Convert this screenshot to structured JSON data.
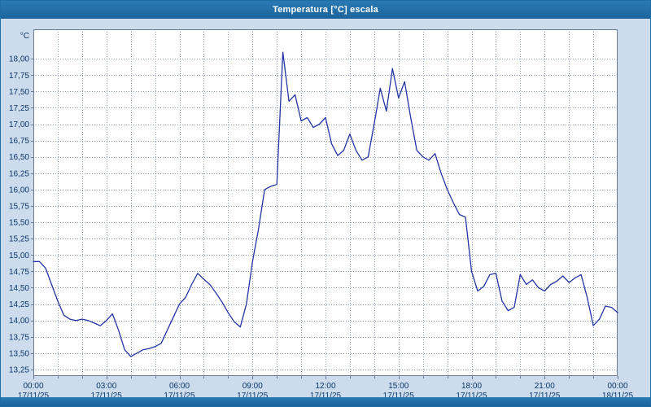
{
  "header": {
    "title": "Temperatura [°C] escala"
  },
  "colors": {
    "page_bg": "#ccdcec",
    "titlebar_bg": "#1c6ea4",
    "plot_bg": "#ffffff",
    "plot_border": "#6b7b8d",
    "grid": "#8da0b5",
    "axis_text": "#0b3568",
    "line": "#2334a4"
  },
  "chart_data": {
    "type": "line",
    "title": "Temperatura [°C] escala",
    "ylabel": "°C",
    "legend": "none",
    "grid": "dotted, hourly vertical, 0.25°C horizontal",
    "xlim": [
      0,
      24
    ],
    "ylim": [
      13.15,
      18.45
    ],
    "x_step_hours": 0.25,
    "x_interval_minutes": 15,
    "y_tick_min": 13.25,
    "y_tick_step": 0.25,
    "y_ticks": [
      "13,25",
      "13,50",
      "13,75",
      "14,00",
      "14,25",
      "14,50",
      "14,75",
      "15,00",
      "15,25",
      "15,50",
      "15,75",
      "16,00",
      "16,25",
      "16,50",
      "16,75",
      "17,00",
      "17,25",
      "17,50",
      "17,75",
      "18,00"
    ],
    "x_ticks": [
      {
        "hour": 0,
        "time": "00:00",
        "date": "17/11/25"
      },
      {
        "hour": 3,
        "time": "03:00",
        "date": "17/11/25"
      },
      {
        "hour": 6,
        "time": "06:00",
        "date": "17/11/25"
      },
      {
        "hour": 9,
        "time": "09:00",
        "date": "17/11/25"
      },
      {
        "hour": 12,
        "time": "12:00",
        "date": "17/11/25"
      },
      {
        "hour": 15,
        "time": "15:00",
        "date": "17/11/25"
      },
      {
        "hour": 18,
        "time": "18:00",
        "date": "17/11/25"
      },
      {
        "hour": 21,
        "time": "21:00",
        "date": "17/11/25"
      },
      {
        "hour": 24,
        "time": "00:00",
        "date": "18/11/25"
      }
    ],
    "values": [
      14.9,
      14.9,
      14.8,
      14.55,
      14.3,
      14.08,
      14.02,
      14.0,
      14.02,
      14.0,
      13.96,
      13.92,
      14.0,
      14.1,
      13.85,
      13.55,
      13.45,
      13.5,
      13.55,
      13.57,
      13.6,
      13.65,
      13.85,
      14.05,
      14.25,
      14.35,
      14.55,
      14.72,
      14.63,
      14.55,
      14.42,
      14.28,
      14.12,
      13.98,
      13.9,
      14.25,
      14.9,
      15.4,
      16.0,
      16.05,
      16.08,
      18.1,
      17.35,
      17.45,
      17.05,
      17.1,
      16.95,
      17.0,
      17.1,
      16.7,
      16.52,
      16.6,
      16.85,
      16.6,
      16.45,
      16.5,
      17.0,
      17.55,
      17.2,
      17.85,
      17.4,
      17.65,
      17.1,
      16.6,
      16.5,
      16.45,
      16.55,
      16.25,
      16.0,
      15.8,
      15.62,
      15.58,
      14.75,
      14.45,
      14.52,
      14.7,
      14.72,
      14.3,
      14.15,
      14.2,
      14.7,
      14.55,
      14.62,
      14.5,
      14.45,
      14.55,
      14.6,
      14.68,
      14.58,
      14.65,
      14.7,
      14.35,
      13.92,
      14.02,
      14.22,
      14.2,
      14.12
    ]
  }
}
